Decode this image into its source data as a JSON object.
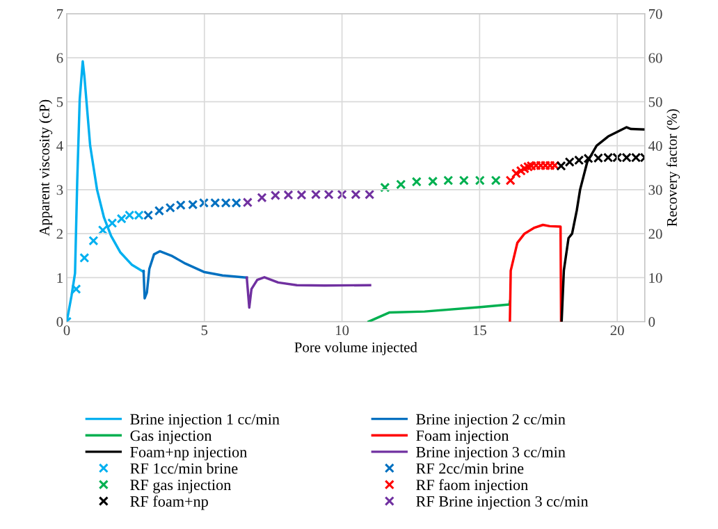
{
  "chart_data": {
    "type": "line",
    "xlabel": "Pore volume injected",
    "ylabel": "Apparent viscosity (cP)",
    "y2label": "Recovery factor (%)",
    "xlim": [
      0,
      21
    ],
    "xticks": [
      0,
      5,
      10,
      15,
      20
    ],
    "ylim": [
      0,
      7
    ],
    "yticks": [
      0,
      1,
      2,
      3,
      4,
      5,
      6,
      7
    ],
    "y2lim": [
      0,
      70
    ],
    "y2ticks": [
      0,
      10,
      20,
      30,
      40,
      50,
      60,
      70
    ],
    "grid": true,
    "legend": "bottom",
    "series": [
      {
        "name": "Brine injection 1 cc/min",
        "marker": "none",
        "color": "#00b0f0",
        "x": [
          0,
          0.17,
          0.3,
          0.38,
          0.47,
          0.58,
          0.64,
          0.85,
          1.1,
          1.35,
          1.61,
          1.94,
          2.37,
          2.79
        ],
        "values": [
          0,
          0.58,
          1.1,
          3.2,
          5.05,
          5.92,
          5.58,
          4.0,
          3.0,
          2.37,
          1.95,
          1.58,
          1.29,
          1.13
        ]
      },
      {
        "name": "Brine injection 2 cc/min",
        "marker": "none",
        "color": "#0070c0",
        "x": [
          2.79,
          2.83,
          2.91,
          3.0,
          3.17,
          3.38,
          3.8,
          4.31,
          4.98,
          5.66,
          6.54
        ],
        "values": [
          1.15,
          0.53,
          0.66,
          1.2,
          1.53,
          1.6,
          1.5,
          1.32,
          1.13,
          1.05,
          1.0
        ]
      },
      {
        "name": "Gas injection",
        "marker": "none",
        "color": "#00b050",
        "x": [
          10.97,
          11.73,
          13.0,
          15.03,
          16.08,
          16.1
        ],
        "values": [
          0,
          0.21,
          0.23,
          0.33,
          0.39,
          0.46
        ]
      },
      {
        "name": "Foam injection",
        "marker": "none",
        "color": "#ff0000",
        "x": [
          16.1,
          16.13,
          16.37,
          16.63,
          16.97,
          17.3,
          17.55,
          17.94,
          17.96
        ],
        "values": [
          0,
          1.16,
          1.79,
          2.0,
          2.13,
          2.2,
          2.17,
          2.16,
          0
        ]
      },
      {
        "name": "Foam+np injection",
        "marker": "none",
        "color": "#000000",
        "x": [
          17.98,
          18.06,
          18.23,
          18.36,
          18.53,
          18.65,
          18.91,
          19.25,
          19.67,
          20.34,
          20.5,
          20.95
        ],
        "values": [
          0,
          1.16,
          1.9,
          2.0,
          2.53,
          3.0,
          3.63,
          4.0,
          4.21,
          4.42,
          4.38,
          4.37
        ]
      },
      {
        "name": "Brine injection 3 cc/min",
        "marker": "none",
        "color": "#7030a0",
        "x": [
          6.54,
          6.63,
          6.71,
          6.92,
          7.18,
          7.68,
          8.36,
          9.37,
          11.02
        ],
        "values": [
          1.0,
          0.32,
          0.74,
          0.95,
          1.01,
          0.89,
          0.83,
          0.82,
          0.83
        ]
      },
      {
        "name": "RF 1cc/min brine",
        "type": "scatter",
        "marker": "cross",
        "axis": "y2",
        "color": "#00b0f0",
        "x": [
          0,
          0.34,
          0.64,
          0.97,
          1.31,
          1.65,
          1.99,
          2.28,
          2.62
        ],
        "values": [
          0,
          7.4,
          14.5,
          18.4,
          20.8,
          22.4,
          23.4,
          24.2,
          24.2
        ]
      },
      {
        "name": "RF 2cc/min brine",
        "type": "scatter",
        "marker": "cross",
        "axis": "y2",
        "color": "#0070c0",
        "x": [
          2.96,
          3.36,
          3.76,
          4.14,
          4.58,
          4.98,
          5.39,
          5.78,
          6.16
        ],
        "values": [
          24.2,
          25.2,
          25.9,
          26.5,
          26.6,
          27.0,
          27.0,
          27.0,
          27.0
        ]
      },
      {
        "name": "RF gas injection",
        "type": "scatter",
        "marker": "cross",
        "axis": "y2",
        "color": "#00b050",
        "x": [
          11.56,
          12.14,
          12.71,
          13.3,
          13.86,
          14.43,
          15.01,
          15.59
        ],
        "values": [
          30.5,
          31.2,
          31.8,
          31.9,
          32.1,
          32.1,
          32.1,
          32.1
        ]
      },
      {
        "name": "RF faom injection",
        "type": "scatter",
        "marker": "cross",
        "axis": "y2",
        "color": "#ff0000",
        "x": [
          16.12,
          16.33,
          16.5,
          16.63,
          16.76,
          16.88,
          17.05,
          17.22,
          17.39,
          17.56,
          17.73
        ],
        "values": [
          32.1,
          33.7,
          34.3,
          34.8,
          35.2,
          35.4,
          35.5,
          35.5,
          35.5,
          35.5,
          35.5
        ]
      },
      {
        "name": "RF foam+np",
        "type": "scatter",
        "marker": "cross",
        "axis": "y2",
        "color": "#000000",
        "x": [
          17.96,
          18.27,
          18.61,
          18.95,
          19.31,
          19.67,
          20.0,
          20.34,
          20.68,
          21.0
        ],
        "values": [
          35.4,
          36.3,
          36.7,
          37.1,
          37.2,
          37.3,
          37.3,
          37.3,
          37.3,
          37.3
        ]
      },
      {
        "name": "RF Brine injection 3 cc/min",
        "type": "scatter",
        "marker": "cross",
        "axis": "y2",
        "color": "#7030a0",
        "x": [
          6.57,
          7.09,
          7.58,
          8.05,
          8.53,
          9.05,
          9.52,
          10.0,
          10.5,
          11.0
        ],
        "values": [
          27.1,
          28.2,
          28.7,
          28.8,
          28.8,
          28.9,
          28.9,
          28.9,
          28.9,
          28.9
        ]
      }
    ]
  }
}
